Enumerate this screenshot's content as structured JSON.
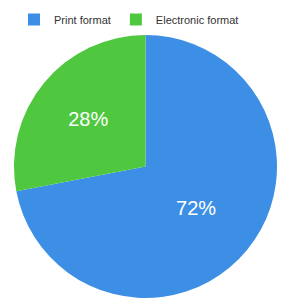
{
  "chart_data": {
    "type": "pie",
    "categories": [
      "Print format",
      "Electronic format"
    ],
    "values": [
      72,
      28
    ],
    "value_labels": [
      "72%",
      "28%"
    ],
    "colors": [
      "#3d8fe6",
      "#4fc83f"
    ],
    "data_labels": true,
    "legend": "top"
  }
}
